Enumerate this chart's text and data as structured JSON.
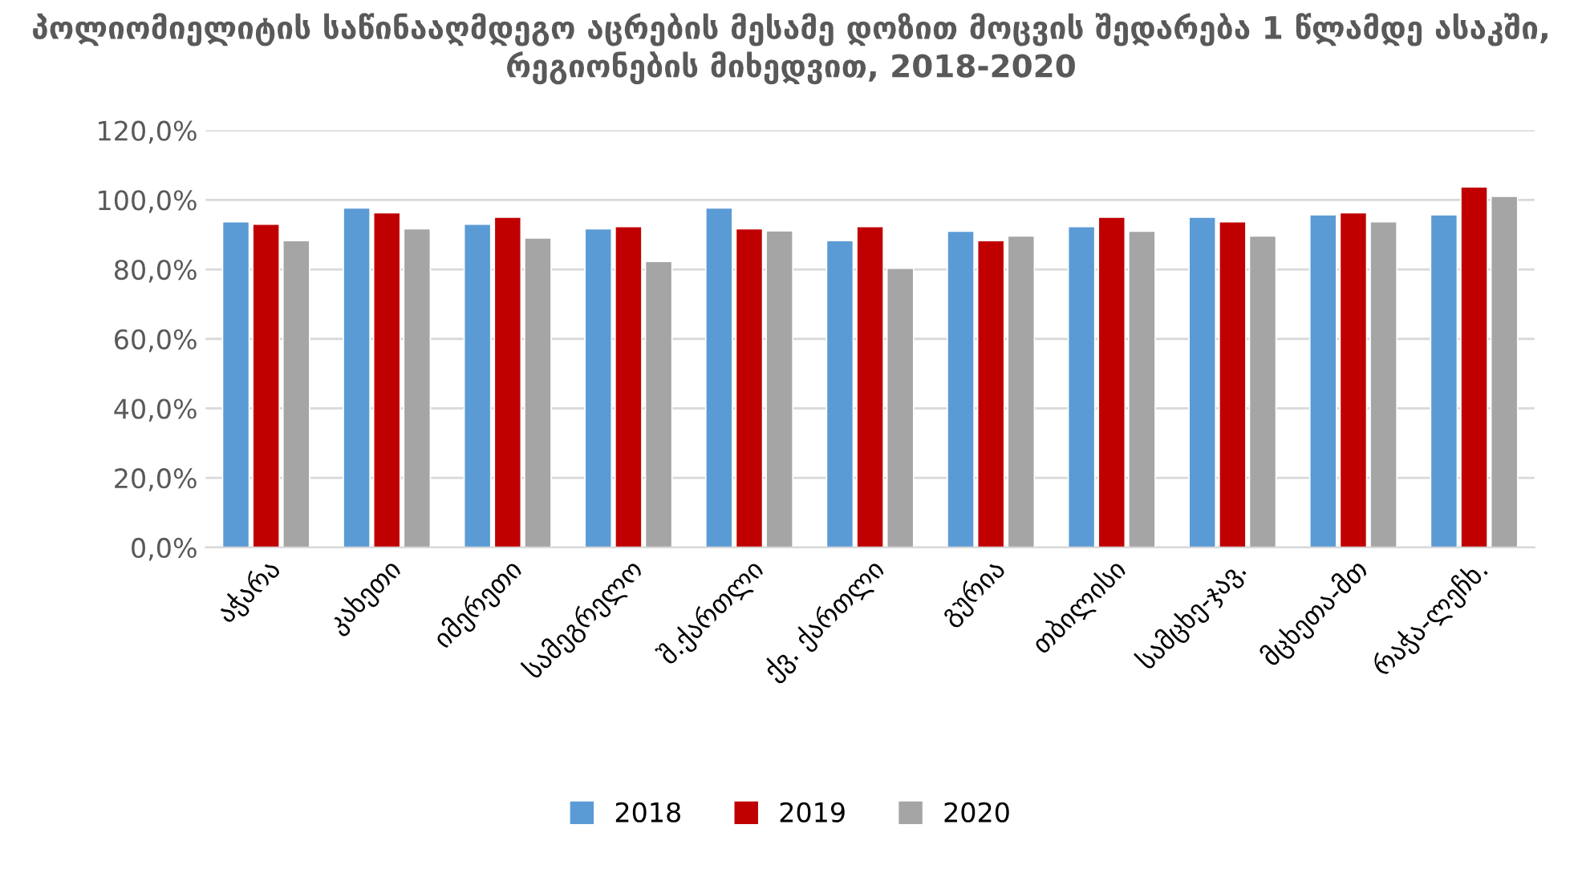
{
  "chart_data": {
    "type": "bar",
    "title": "პოლიომიელიტის საწინააღმდეგო აცრების მესამე დოზით მოცვის შედარება 1 წლამდე ასაკში, რეგიონების მიხედვით, 2018-2020",
    "categories": [
      "აჭარა",
      "კახეთი",
      "იმერეთი",
      "სამეგრელო",
      "შ.ქართლი",
      "ქვ. ქართლი",
      "გურია",
      "თბილისი",
      "სამცხე-ჯავ.",
      "მცხეთა-მთ",
      "რაჭა-ლეჩხ."
    ],
    "series": [
      {
        "name": "2018",
        "color": "#5b9bd5",
        "values": [
          93.7,
          97.7,
          93.0,
          91.7,
          97.7,
          88.3,
          91.0,
          92.3,
          95.0,
          95.7,
          95.7
        ]
      },
      {
        "name": "2019",
        "color": "#c00000",
        "values": [
          93.0,
          96.3,
          95.0,
          92.3,
          91.7,
          92.3,
          88.3,
          95.0,
          93.7,
          96.3,
          103.7
        ]
      },
      {
        "name": "2020",
        "color": "#a5a5a5",
        "values": [
          88.3,
          91.7,
          89.0,
          82.3,
          91.1,
          80.3,
          89.6,
          91.0,
          89.6,
          93.7,
          101.0
        ]
      }
    ],
    "ylim": [
      0,
      120
    ],
    "yticks": [
      {
        "value": 0,
        "label": "0,0%"
      },
      {
        "value": 20,
        "label": "20,0%"
      },
      {
        "value": 40,
        "label": "40,0%"
      },
      {
        "value": 60,
        "label": "60,0%"
      },
      {
        "value": 80,
        "label": "80,0%"
      },
      {
        "value": 100,
        "label": "100,0%"
      },
      {
        "value": 120,
        "label": "120,0%"
      }
    ],
    "grid": "y",
    "legend": "bottom"
  }
}
